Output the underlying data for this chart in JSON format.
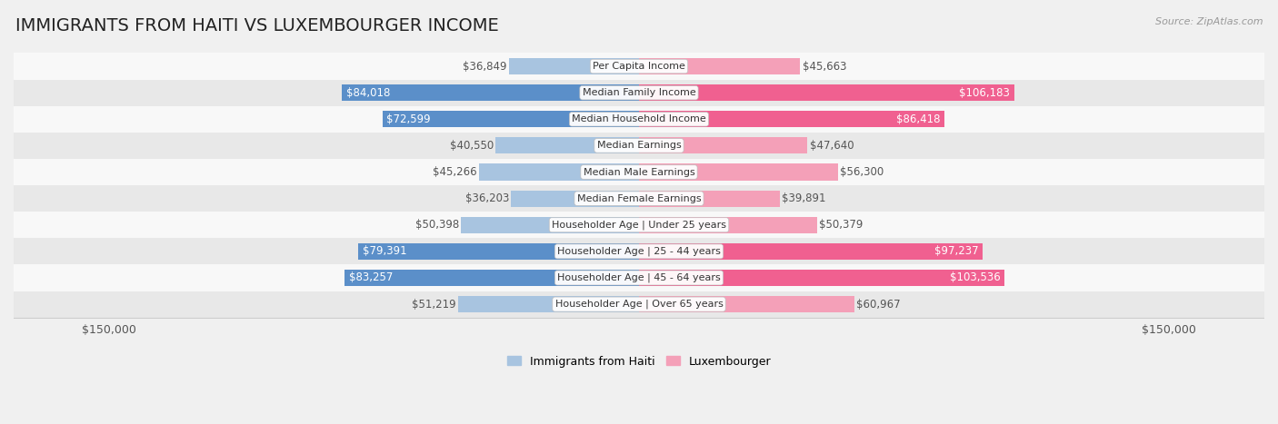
{
  "title": "IMMIGRANTS FROM HAITI VS LUXEMBOURGER INCOME",
  "source": "Source: ZipAtlas.com",
  "categories": [
    "Per Capita Income",
    "Median Family Income",
    "Median Household Income",
    "Median Earnings",
    "Median Male Earnings",
    "Median Female Earnings",
    "Householder Age | Under 25 years",
    "Householder Age | 25 - 44 years",
    "Householder Age | 45 - 64 years",
    "Householder Age | Over 65 years"
  ],
  "haiti_values": [
    36849,
    84018,
    72599,
    40550,
    45266,
    36203,
    50398,
    79391,
    83257,
    51219
  ],
  "lux_values": [
    45663,
    106183,
    86418,
    47640,
    56300,
    39891,
    50379,
    97237,
    103536,
    60967
  ],
  "haiti_labels": [
    "$36,849",
    "$84,018",
    "$72,599",
    "$40,550",
    "$45,266",
    "$36,203",
    "$50,398",
    "$79,391",
    "$83,257",
    "$51,219"
  ],
  "lux_labels": [
    "$45,663",
    "$106,183",
    "$86,418",
    "$47,640",
    "$56,300",
    "$39,891",
    "$50,379",
    "$97,237",
    "$103,536",
    "$60,967"
  ],
  "haiti_color_light": "#a8c4e0",
  "haiti_color_dark": "#5b8fc9",
  "lux_color_light": "#f4a0b8",
  "lux_color_dark": "#f06090",
  "max_val": 150000,
  "bg_color": "#f0f0f0",
  "row_bg_even": "#f8f8f8",
  "row_bg_odd": "#e8e8e8",
  "legend_haiti": "Immigrants from Haiti",
  "legend_lux": "Luxembourger",
  "xlabel_left": "$150,000",
  "xlabel_right": "$150,000",
  "title_fontsize": 14,
  "label_fontsize": 8.5,
  "category_fontsize": 8.0,
  "large_value_threshold": 65000
}
